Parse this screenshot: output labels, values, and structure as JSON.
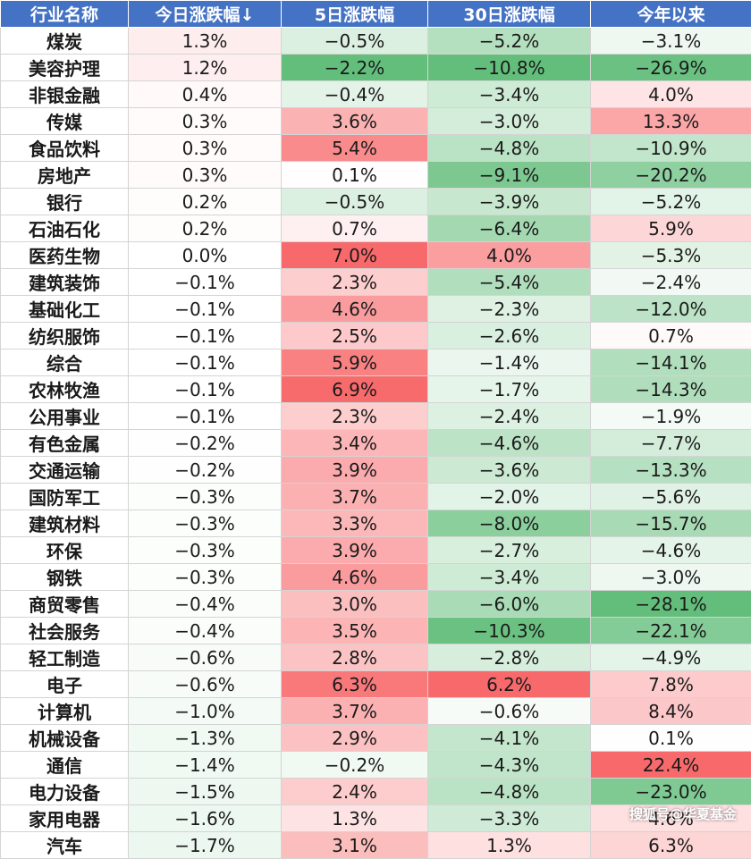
{
  "chart_data": {
    "type": "table",
    "columns": [
      "行业名称",
      "今日涨跌幅↓",
      "5日涨跌幅",
      "30日涨跌幅",
      "今年以来"
    ],
    "rows": [
      [
        "煤炭",
        "1.3%",
        "−0.5%",
        "−5.2%",
        "−3.1%"
      ],
      [
        "美容护理",
        "1.2%",
        "−2.2%",
        "−10.8%",
        "−26.9%"
      ],
      [
        "非银金融",
        "0.4%",
        "−0.4%",
        "−3.4%",
        "4.0%"
      ],
      [
        "传媒",
        "0.3%",
        "3.6%",
        "−3.0%",
        "13.3%"
      ],
      [
        "食品饮料",
        "0.3%",
        "5.4%",
        "−4.8%",
        "−10.9%"
      ],
      [
        "房地产",
        "0.3%",
        "0.1%",
        "−9.1%",
        "−20.2%"
      ],
      [
        "银行",
        "0.2%",
        "−0.5%",
        "−3.9%",
        "−5.2%"
      ],
      [
        "石油石化",
        "0.2%",
        "0.7%",
        "−6.4%",
        "5.9%"
      ],
      [
        "医药生物",
        "0.0%",
        "7.0%",
        "4.0%",
        "−5.3%"
      ],
      [
        "建筑装饰",
        "−0.1%",
        "2.3%",
        "−5.4%",
        "−2.4%"
      ],
      [
        "基础化工",
        "−0.1%",
        "4.6%",
        "−2.3%",
        "−12.0%"
      ],
      [
        "纺织服饰",
        "−0.1%",
        "2.5%",
        "−2.6%",
        "0.7%"
      ],
      [
        "综合",
        "−0.1%",
        "5.9%",
        "−1.4%",
        "−14.1%"
      ],
      [
        "农林牧渔",
        "−0.1%",
        "6.9%",
        "−1.7%",
        "−14.3%"
      ],
      [
        "公用事业",
        "−0.1%",
        "2.3%",
        "−2.4%",
        "−1.9%"
      ],
      [
        "有色金属",
        "−0.2%",
        "3.4%",
        "−4.6%",
        "−7.7%"
      ],
      [
        "交通运输",
        "−0.2%",
        "3.9%",
        "−3.6%",
        "−13.3%"
      ],
      [
        "国防军工",
        "−0.3%",
        "3.7%",
        "−2.0%",
        "−5.6%"
      ],
      [
        "建筑材料",
        "−0.3%",
        "3.3%",
        "−8.0%",
        "−15.7%"
      ],
      [
        "环保",
        "−0.3%",
        "3.9%",
        "−2.7%",
        "−4.6%"
      ],
      [
        "钢铁",
        "−0.3%",
        "4.6%",
        "−3.4%",
        "−3.0%"
      ],
      [
        "商贸零售",
        "−0.4%",
        "3.0%",
        "−6.0%",
        "−28.1%"
      ],
      [
        "社会服务",
        "−0.4%",
        "3.5%",
        "−10.3%",
        "−22.1%"
      ],
      [
        "轻工制造",
        "−0.6%",
        "2.8%",
        "−2.8%",
        "−4.9%"
      ],
      [
        "电子",
        "−0.6%",
        "6.3%",
        "6.2%",
        "7.8%"
      ],
      [
        "计算机",
        "−1.0%",
        "3.7%",
        "−0.6%",
        "8.4%"
      ],
      [
        "机械设备",
        "−1.3%",
        "2.9%",
        "−4.1%",
        "0.1%"
      ],
      [
        "通信",
        "−1.4%",
        "−0.2%",
        "−4.3%",
        "22.4%"
      ],
      [
        "电力设备",
        "−1.5%",
        "2.4%",
        "−4.8%",
        "−23.0%"
      ],
      [
        "家用电器",
        "−1.6%",
        "1.3%",
        "−3.3%",
        "4.6%"
      ],
      [
        "汽车",
        "−1.7%",
        "3.1%",
        "1.3%",
        "6.3%"
      ]
    ],
    "colors": {
      "header_bg": "#4472c4",
      "header_text": "#ffffff",
      "positive": "#f8696b",
      "negative": "#63be7b",
      "neutral": "#ffffff"
    }
  },
  "watermark": "搜狐号@华夏基金"
}
